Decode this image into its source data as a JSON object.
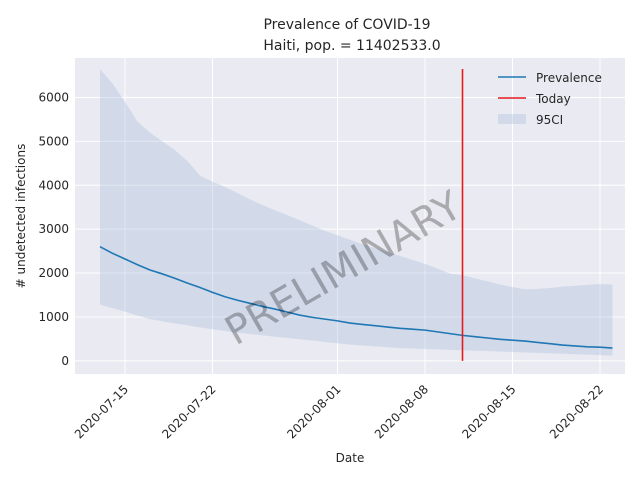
{
  "chart_data": {
    "type": "line",
    "title": "Prevalence of COVID-19",
    "subtitle": "Haiti, pop. = 11402533.0",
    "xlabel": "Date",
    "ylabel": "# undetected infections",
    "watermark": "PRELIMINARY",
    "x_range": [
      "2020-07-11",
      "2020-08-24"
    ],
    "ylim": [
      -300,
      6900
    ],
    "yticks": [
      0,
      1000,
      2000,
      3000,
      4000,
      5000,
      6000
    ],
    "xticks": [
      "2020-07-15",
      "2020-07-22",
      "2020-08-01",
      "2020-08-08",
      "2020-08-15",
      "2020-08-22"
    ],
    "grid": true,
    "legend_position": "top-right",
    "today": "2020-08-11",
    "series": [
      {
        "name": "Prevalence",
        "color": "#1f77b4",
        "x": [
          "2020-07-13",
          "2020-07-14",
          "2020-07-15",
          "2020-07-16",
          "2020-07-17",
          "2020-07-18",
          "2020-07-19",
          "2020-07-20",
          "2020-07-21",
          "2020-07-22",
          "2020-07-23",
          "2020-07-24",
          "2020-07-25",
          "2020-07-26",
          "2020-07-27",
          "2020-07-28",
          "2020-07-29",
          "2020-07-30",
          "2020-07-31",
          "2020-08-01",
          "2020-08-02",
          "2020-08-03",
          "2020-08-04",
          "2020-08-05",
          "2020-08-06",
          "2020-08-07",
          "2020-08-08",
          "2020-08-09",
          "2020-08-10",
          "2020-08-11",
          "2020-08-12",
          "2020-08-13",
          "2020-08-14",
          "2020-08-15",
          "2020-08-16",
          "2020-08-17",
          "2020-08-18",
          "2020-08-19",
          "2020-08-20",
          "2020-08-21",
          "2020-08-22",
          "2020-08-23"
        ],
        "values": [
          2600,
          2450,
          2320,
          2190,
          2070,
          1980,
          1880,
          1770,
          1670,
          1560,
          1460,
          1380,
          1310,
          1240,
          1180,
          1110,
          1040,
          990,
          950,
          910,
          860,
          830,
          800,
          770,
          740,
          720,
          700,
          660,
          620,
          580,
          550,
          520,
          490,
          470,
          450,
          420,
          390,
          360,
          340,
          320,
          310,
          290
        ]
      },
      {
        "name": "Today",
        "color": "#e41a1c",
        "x": [
          "2020-08-11",
          "2020-08-11"
        ],
        "values": [
          0,
          6650
        ]
      },
      {
        "name": "95CI",
        "color": "#b0c4de",
        "x": [
          "2020-07-13",
          "2020-07-14",
          "2020-07-15",
          "2020-07-16",
          "2020-07-17",
          "2020-07-18",
          "2020-07-19",
          "2020-07-20",
          "2020-07-21",
          "2020-07-22",
          "2020-07-23",
          "2020-07-24",
          "2020-07-25",
          "2020-07-26",
          "2020-07-27",
          "2020-07-28",
          "2020-07-29",
          "2020-07-30",
          "2020-07-31",
          "2020-08-01",
          "2020-08-02",
          "2020-08-03",
          "2020-08-04",
          "2020-08-05",
          "2020-08-06",
          "2020-08-07",
          "2020-08-08",
          "2020-08-09",
          "2020-08-10",
          "2020-08-11",
          "2020-08-12",
          "2020-08-13",
          "2020-08-14",
          "2020-08-15",
          "2020-08-16",
          "2020-08-17",
          "2020-08-18",
          "2020-08-19",
          "2020-08-20",
          "2020-08-21",
          "2020-08-22",
          "2020-08-23"
        ],
        "lower": [
          1280,
          1200,
          1120,
          1030,
          950,
          900,
          850,
          810,
          760,
          720,
          680,
          640,
          610,
          580,
          550,
          520,
          490,
          460,
          430,
          400,
          370,
          350,
          330,
          310,
          290,
          280,
          270,
          260,
          250,
          240,
          230,
          220,
          210,
          200,
          190,
          180,
          170,
          160,
          150,
          140,
          130,
          120
        ],
        "upper": [
          6650,
          6320,
          5900,
          5450,
          5200,
          5000,
          4800,
          4550,
          4220,
          4080,
          3960,
          3820,
          3680,
          3550,
          3430,
          3320,
          3200,
          3080,
          2960,
          2860,
          2760,
          2660,
          2570,
          2480,
          2390,
          2300,
          2210,
          2100,
          1990,
          1950,
          1880,
          1810,
          1740,
          1680,
          1630,
          1640,
          1660,
          1690,
          1710,
          1730,
          1750,
          1740
        ]
      }
    ]
  }
}
